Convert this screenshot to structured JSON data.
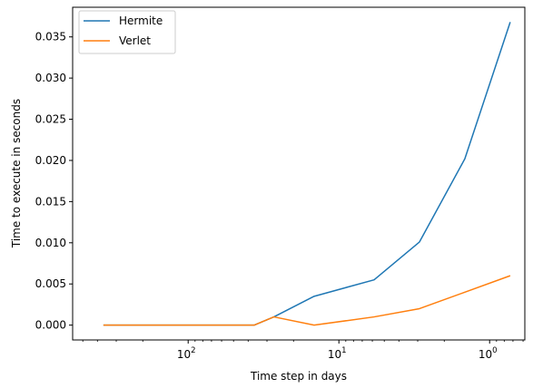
{
  "chart_data": {
    "type": "line",
    "title": "",
    "xlabel": "Time step in days",
    "ylabel": "Time to execute in seconds",
    "x_scale": "log",
    "x_inverted": true,
    "x": [
      365,
      365,
      365,
      365,
      365,
      146,
      36.5,
      14.6,
      7.3,
      2.92,
      1.46,
      0.73
    ],
    "xlim": [
      584,
      0.584
    ],
    "ylim": [
      -0.0018,
      0.0386
    ],
    "grid": false,
    "legend": "top-left",
    "x_ticks": [
      {
        "value": 100,
        "base": "10",
        "exp": "2"
      },
      {
        "value": 10,
        "base": "10",
        "exp": "1"
      },
      {
        "value": 1,
        "base": "10",
        "exp": "0"
      }
    ],
    "y_ticks": [
      {
        "value": 0.0,
        "label": "0.000"
      },
      {
        "value": 0.005,
        "label": "0.005"
      },
      {
        "value": 0.01,
        "label": "0.010"
      },
      {
        "value": 0.015,
        "label": "0.015"
      },
      {
        "value": 0.02,
        "label": "0.020"
      },
      {
        "value": 0.025,
        "label": "0.025"
      },
      {
        "value": 0.03,
        "label": "0.030"
      },
      {
        "value": 0.035,
        "label": "0.035"
      }
    ],
    "series": [
      {
        "name": "Hermite",
        "color": "#1f77b4",
        "x": [
          365,
          146,
          36.5,
          27.0,
          14.6,
          5.84,
          2.92,
          1.46,
          0.73
        ],
        "values": [
          0.0,
          0.0,
          0.0,
          0.001,
          0.0035,
          0.0055,
          0.0101,
          0.0202,
          0.0368
        ]
      },
      {
        "name": "Verlet",
        "color": "#ff7f0e",
        "x": [
          365,
          146,
          36.5,
          27.0,
          14.6,
          5.84,
          2.92,
          1.46,
          0.73
        ],
        "values": [
          0.0,
          0.0,
          0.0,
          0.001,
          0.0,
          0.001,
          0.002,
          0.004,
          0.006
        ]
      }
    ]
  }
}
